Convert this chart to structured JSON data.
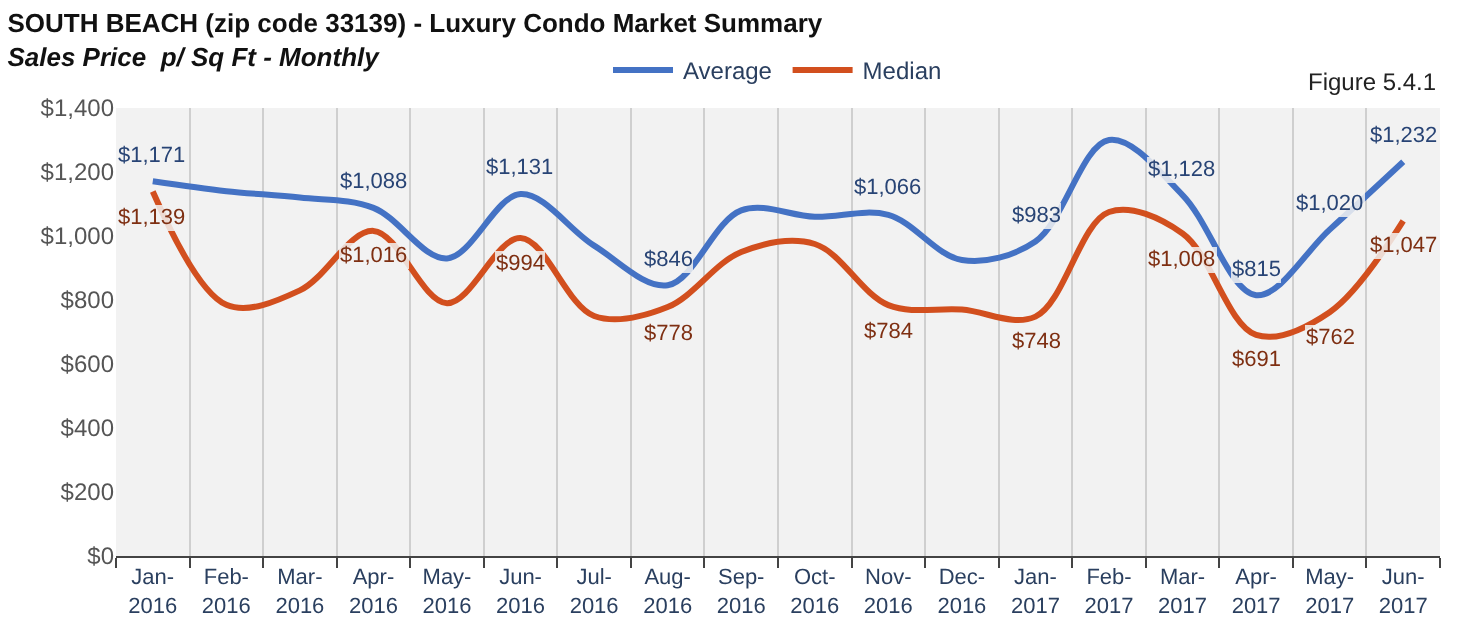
{
  "chart_data": {
    "type": "line",
    "title": "SOUTH BEACH (zip code 33139) - Luxury Condo Market Summary",
    "subtitle": "Sales Price  p/ Sq Ft - Monthly",
    "annotations": [
      "Figure 5.4.1"
    ],
    "categories": [
      "Jan-2016",
      "Feb-2016",
      "Mar-2016",
      "Apr-2016",
      "May-2016",
      "Jun-2016",
      "Jul-2016",
      "Aug-2016",
      "Sep-2016",
      "Oct-2016",
      "Nov-2016",
      "Dec-2016",
      "Jan-2017",
      "Feb-2017",
      "Mar-2017",
      "Apr-2017",
      "May-2017",
      "Jun-2017"
    ],
    "series": [
      {
        "name": "Average",
        "color": "#4472c4",
        "values": [
          1171,
          1140,
          1120,
          1088,
          930,
          1131,
          970,
          846,
          1080,
          1060,
          1066,
          925,
          983,
          1300,
          1128,
          815,
          1020,
          1232
        ],
        "value_labels": [
          "$1,171",
          null,
          null,
          "$1,088",
          null,
          "$1,131",
          null,
          "$846",
          null,
          null,
          "$1,066",
          null,
          "$983",
          null,
          "$1,128",
          "$815",
          "$1,020",
          "$1,232"
        ]
      },
      {
        "name": "Median",
        "color": "#d24f1e",
        "values": [
          1139,
          785,
          830,
          1016,
          790,
          994,
          750,
          778,
          950,
          975,
          784,
          770,
          748,
          1075,
          1008,
          691,
          762,
          1047
        ],
        "value_labels": [
          "$1,139",
          null,
          null,
          "$1,016",
          null,
          "$994",
          null,
          "$778",
          null,
          null,
          "$784",
          null,
          "$748",
          null,
          "$1,008",
          "$691",
          "$762",
          "$1,047"
        ]
      }
    ],
    "ylim": [
      0,
      1400
    ],
    "yticks": [
      {
        "value": 0,
        "label": "$0"
      },
      {
        "value": 200,
        "label": "$200"
      },
      {
        "value": 400,
        "label": "$400"
      },
      {
        "value": 600,
        "label": "$600"
      },
      {
        "value": 800,
        "label": "$800"
      },
      {
        "value": 1000,
        "label": "$1,000"
      },
      {
        "value": 1200,
        "label": "$1,200"
      },
      {
        "value": 1400,
        "label": "$1,400"
      }
    ],
    "grid": "x",
    "legend": "top",
    "marker": "none",
    "line_style": "solid"
  }
}
